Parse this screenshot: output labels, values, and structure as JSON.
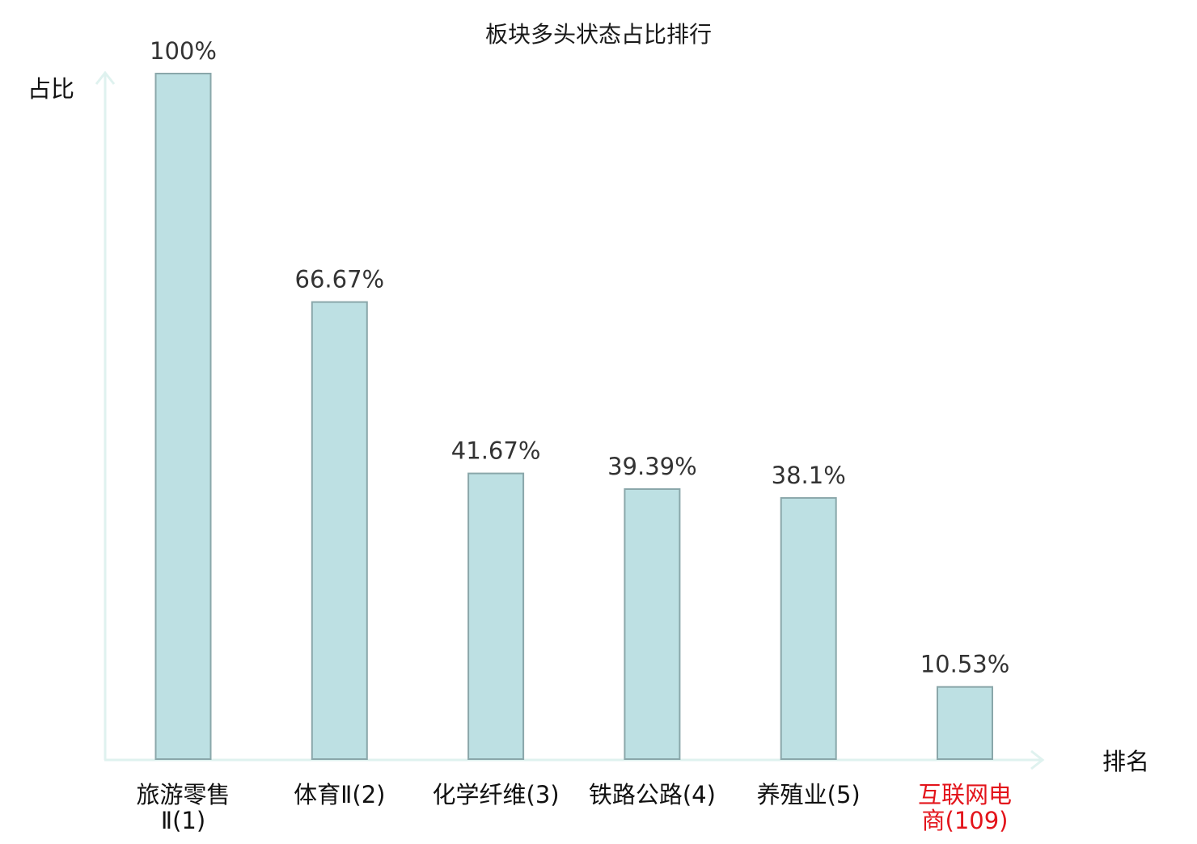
{
  "chart_data": {
    "type": "bar",
    "title": "板块多头状态占比排行",
    "ylabel": "占比",
    "xlabel": "排名",
    "ylim": [
      0,
      100
    ],
    "categories": [
      [
        "旅游零售",
        "Ⅱ(1)"
      ],
      [
        "体育Ⅱ(2)"
      ],
      [
        "化学纤维(3)"
      ],
      [
        "铁路公路(4)"
      ],
      [
        "养殖业(5)"
      ],
      [
        "互联网电",
        "商(109)"
      ]
    ],
    "values": [
      100,
      66.67,
      41.67,
      39.39,
      38.1,
      10.53
    ],
    "value_labels": [
      "100%",
      "66.67%",
      "41.67%",
      "39.39%",
      "38.1%",
      "10.53%"
    ],
    "highlight_index": 5,
    "grid": false,
    "colors": {
      "bar_fill": "#bde0e3",
      "bar_stroke": "#8aa7aa",
      "axis": "#dff2ef",
      "highlight_text": "#e3141b"
    }
  }
}
